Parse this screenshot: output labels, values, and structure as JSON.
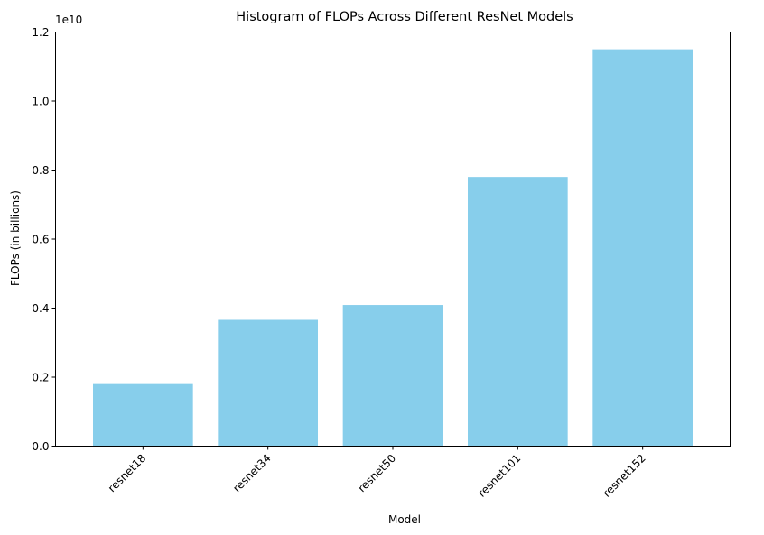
{
  "chart_data": {
    "type": "bar",
    "title": "Histogram of FLOPs Across Different ResNet Models",
    "xlabel": "Model",
    "ylabel": "FLOPs (in billions)",
    "y_offset_label": "1e10",
    "categories": [
      "resnet18",
      "resnet34",
      "resnet50",
      "resnet101",
      "resnet152"
    ],
    "values": [
      1.8,
      3.66,
      4.09,
      7.8,
      11.5
    ],
    "values_scale": 1000000000.0,
    "ylim": [
      0,
      1.2
    ],
    "yticks": [
      0.0,
      0.2,
      0.4,
      0.6,
      0.8,
      1.0,
      1.2
    ],
    "ytick_labels": [
      "0.0",
      "0.2",
      "0.4",
      "0.6",
      "0.8",
      "1.0",
      "1.2"
    ],
    "bar_color": "#87ceeb",
    "grid": false,
    "legend": "none"
  }
}
